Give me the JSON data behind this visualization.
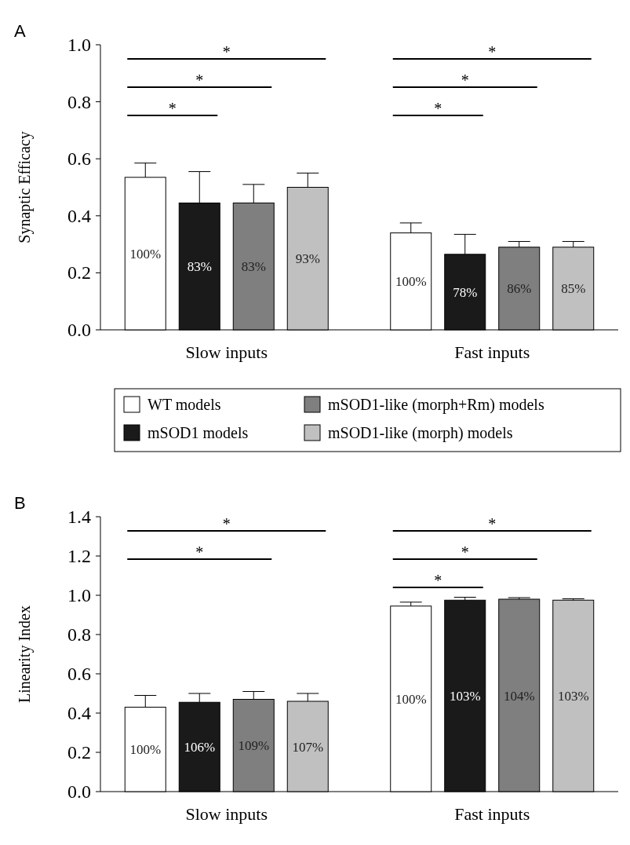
{
  "chart_data": [
    {
      "type": "bar",
      "title": "A",
      "ylabel": "Synaptic Efficacy",
      "categories": [
        "Slow inputs",
        "Fast inputs"
      ],
      "ylim": [
        0,
        1.0
      ],
      "yticks": [
        {
          "value": 0,
          "label": "0.0"
        },
        {
          "value": 0.2,
          "label": "0.2"
        },
        {
          "value": 0.4,
          "label": "0.4"
        },
        {
          "value": 0.6,
          "label": "0.6"
        },
        {
          "value": 0.8,
          "label": "0.8"
        },
        {
          "value": 1.0,
          "label": "1.0"
        }
      ],
      "legend": "bottom",
      "annotations": [
        "*",
        "*",
        "*",
        "*",
        "*",
        "*",
        "100%",
        "83%",
        "83%",
        "93%",
        "100%",
        "78%",
        "86%",
        "85%"
      ],
      "series": [
        {
          "name": "WT models",
          "color": "#ffffff",
          "values": [
            0.535,
            0.34
          ],
          "errors": [
            [
              0.535,
              0.585
            ],
            [
              0.34,
              0.375
            ]
          ]
        },
        {
          "name": "mSOD1 models",
          "color": "#1a1a1a",
          "values": [
            0.445,
            0.265
          ],
          "errors": [
            [
              0.445,
              0.555
            ],
            [
              0.265,
              0.335
            ]
          ]
        },
        {
          "name": "mSOD1-like (morph+Rm) models",
          "color": "#7f7f7f",
          "values": [
            0.445,
            0.29
          ],
          "errors": [
            [
              0.445,
              0.51
            ],
            [
              0.29,
              0.31
            ]
          ]
        },
        {
          "name": "mSOD1-like (morph) models",
          "color": "#c0c0c0",
          "values": [
            0.5,
            0.29
          ],
          "errors": [
            [
              0.5,
              0.55
            ],
            [
              0.29,
              0.31
            ]
          ]
        }
      ]
    },
    {
      "type": "bar",
      "title": "B",
      "ylabel": "Linearity Index",
      "categories": [
        "Slow inputs",
        "Fast inputs"
      ],
      "ylim": [
        0,
        1.4
      ],
      "yticks": [
        {
          "value": 0,
          "label": "0.0"
        },
        {
          "value": 0.2,
          "label": "0.2"
        },
        {
          "value": 0.4,
          "label": "0.4"
        },
        {
          "value": 0.6,
          "label": "0.6"
        },
        {
          "value": 0.8,
          "label": "0.8"
        },
        {
          "value": 1.0,
          "label": "1.0"
        },
        {
          "value": 1.2,
          "label": "1.2"
        },
        {
          "value": 1.4,
          "label": "1.4"
        }
      ],
      "annotations": [
        "*",
        "*",
        "*",
        "*",
        "*",
        "100%",
        "106%",
        "109%",
        "107%",
        "100%",
        "103%",
        "104%",
        "103%"
      ],
      "series": [
        {
          "color": "#ffffff",
          "values": [
            0.43,
            0.945
          ],
          "errors": [
            [
              0.43,
              0.49
            ],
            [
              0.945,
              0.965
            ]
          ]
        },
        {
          "color": "#1a1a1a",
          "values": [
            0.455,
            0.975
          ],
          "errors": [
            [
              0.455,
              0.5
            ],
            [
              0.975,
              0.99
            ]
          ]
        },
        {
          "color": "#7f7f7f",
          "values": [
            0.47,
            0.98
          ],
          "errors": [
            [
              0.47,
              0.51
            ],
            [
              0.98,
              0.988
            ]
          ]
        },
        {
          "color": "#c0c0c0",
          "values": [
            0.46,
            0.975
          ],
          "errors": [
            [
              0.46,
              0.5
            ],
            [
              0.975,
              0.982
            ]
          ]
        }
      ]
    }
  ]
}
